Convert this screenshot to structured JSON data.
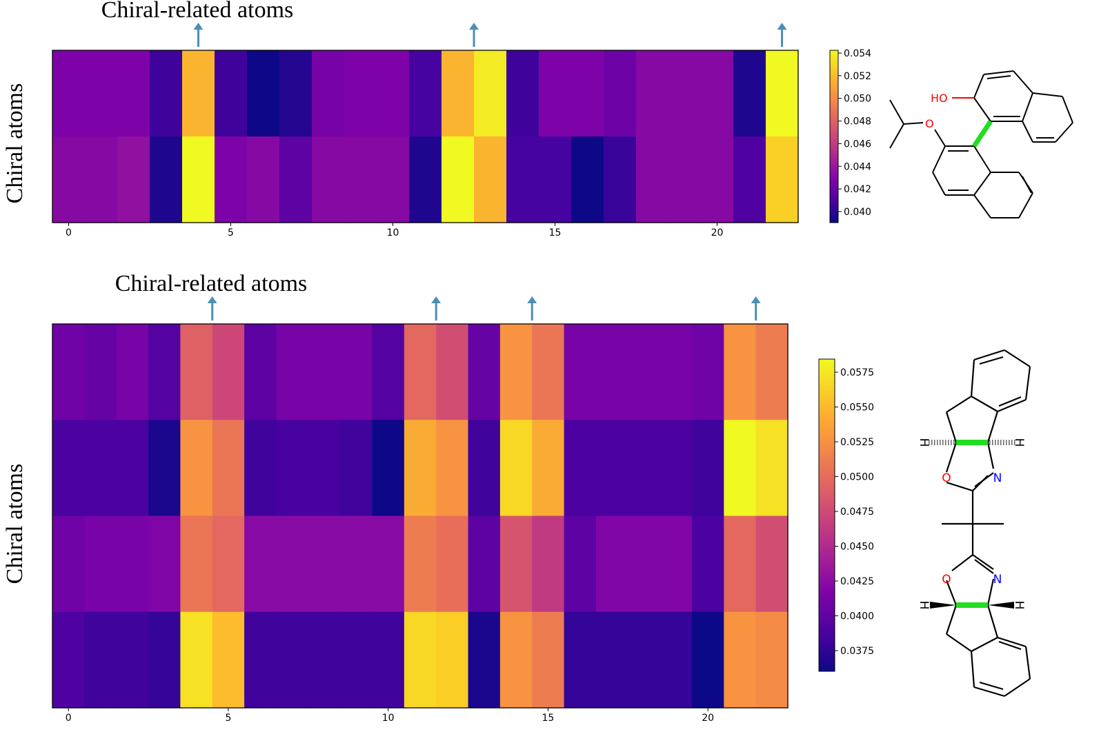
{
  "chart_data": [
    {
      "type": "heatmap",
      "annotation_title": "Chiral-related atoms",
      "ylabel": "Chiral atoms",
      "x_ticks": [
        "0",
        "5",
        "10",
        "15",
        "20"
      ],
      "x_count": 23,
      "arrow_columns": [
        4,
        12.5,
        22
      ],
      "vmin": 0.0395,
      "vmax": 0.0545,
      "colorbar_ticks": [
        "0.054",
        "0.052",
        "0.050",
        "0.048",
        "0.046",
        "0.044",
        "0.042",
        "0.040"
      ],
      "rows": [
        [
          0.0432,
          0.0432,
          0.0432,
          0.041,
          0.052,
          0.041,
          0.0395,
          0.0402,
          0.043,
          0.0432,
          0.0432,
          0.0412,
          0.052,
          0.054,
          0.041,
          0.0432,
          0.0432,
          0.0426,
          0.0436,
          0.0436,
          0.0436,
          0.04,
          0.0545
        ],
        [
          0.0436,
          0.0436,
          0.044,
          0.04,
          0.0545,
          0.0432,
          0.0436,
          0.042,
          0.0436,
          0.0436,
          0.0436,
          0.04,
          0.0545,
          0.052,
          0.0412,
          0.0412,
          0.0395,
          0.0408,
          0.0436,
          0.0436,
          0.0436,
          0.0415,
          0.053
        ]
      ],
      "molecule": {
        "labels": [
          "HO",
          "O"
        ]
      }
    },
    {
      "type": "heatmap",
      "annotation_title": "Chiral-related atoms",
      "ylabel": "Chiral atoms",
      "x_ticks": [
        "0",
        "5",
        "10",
        "15",
        "20"
      ],
      "x_count": 23,
      "arrow_columns": [
        4.5,
        11.5,
        14.5,
        21.5
      ],
      "vmin": 0.0362,
      "vmax": 0.0588,
      "colorbar_ticks": [
        "0.0575",
        "0.0550",
        "0.0525",
        "0.0500",
        "0.0475",
        "0.0450",
        "0.0425",
        "0.0400",
        "0.0375"
      ],
      "rows": [
        [
          0.041,
          0.0405,
          0.0415,
          0.0395,
          0.0495,
          0.0475,
          0.04,
          0.0415,
          0.0415,
          0.0415,
          0.0395,
          0.05,
          0.048,
          0.0405,
          0.053,
          0.051,
          0.0415,
          0.0415,
          0.0415,
          0.0415,
          0.041,
          0.053,
          0.0515
        ],
        [
          0.039,
          0.039,
          0.039,
          0.0368,
          0.053,
          0.051,
          0.0385,
          0.0388,
          0.0388,
          0.0385,
          0.0362,
          0.0545,
          0.053,
          0.0385,
          0.057,
          0.0545,
          0.039,
          0.039,
          0.039,
          0.039,
          0.0385,
          0.0588,
          0.0575
        ],
        [
          0.041,
          0.0415,
          0.0415,
          0.042,
          0.051,
          0.05,
          0.0425,
          0.0425,
          0.0425,
          0.0425,
          0.0425,
          0.0515,
          0.0505,
          0.04,
          0.0485,
          0.0465,
          0.04,
          0.042,
          0.042,
          0.042,
          0.039,
          0.05,
          0.048
        ],
        [
          0.0392,
          0.0385,
          0.0385,
          0.038,
          0.0575,
          0.0555,
          0.0385,
          0.0385,
          0.0385,
          0.0385,
          0.0385,
          0.057,
          0.0565,
          0.0368,
          0.053,
          0.0515,
          0.038,
          0.038,
          0.038,
          0.038,
          0.0362,
          0.053,
          0.0525
        ]
      ],
      "molecule": {
        "labels": [
          "O",
          "N",
          "O",
          "N",
          "H",
          "H",
          "H",
          "H"
        ]
      }
    }
  ],
  "colors": {
    "arrow": "#4a90b5",
    "highlight": "#22dd22",
    "oxygen": "#ff0000",
    "nitrogen": "#0000ff"
  }
}
